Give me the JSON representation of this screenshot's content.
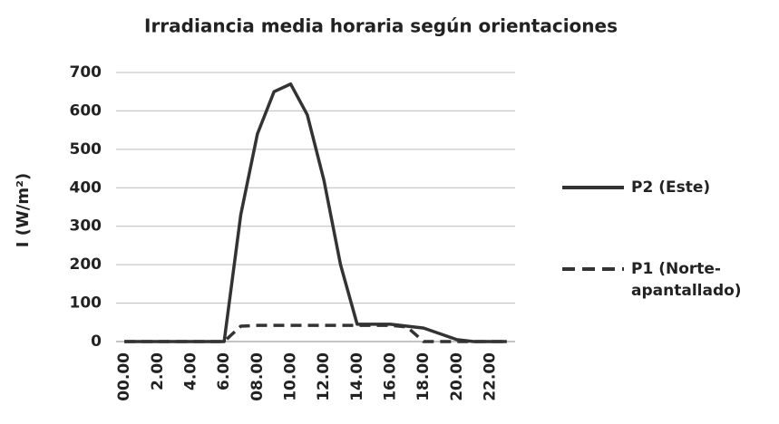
{
  "chart_data": {
    "type": "line",
    "title": "Irradiancia media horaria según orientaciones",
    "y_label": "I (W/m²)",
    "categories": [
      "00.00",
      null,
      "2.00",
      null,
      "4.00",
      null,
      "6.00",
      null,
      "08.00",
      null,
      "10.00",
      null,
      "12.00",
      null,
      "14.00",
      null,
      "16.00",
      null,
      "18.00",
      null,
      "20.00",
      null,
      "22.00",
      null
    ],
    "series": [
      {
        "name": "P2 (Este)",
        "color": "#333333",
        "style": "solid",
        "values": [
          0,
          0,
          0,
          0,
          0,
          0,
          0,
          330,
          540,
          650,
          670,
          590,
          420,
          200,
          45,
          45,
          45,
          40,
          35,
          20,
          5,
          0,
          0,
          0
        ]
      },
      {
        "name": "P1 (Norte-apantallado)",
        "color": "#333333",
        "style": "dashed",
        "values": [
          0,
          0,
          0,
          0,
          0,
          0,
          0,
          40,
          42,
          42,
          42,
          42,
          42,
          42,
          42,
          42,
          42,
          38,
          0,
          0,
          0,
          0,
          0,
          0
        ]
      }
    ],
    "ylim": [
      0,
      700
    ],
    "yticks": [
      0,
      100,
      200,
      300,
      400,
      500,
      600,
      700
    ],
    "grid": true,
    "legend": "right"
  }
}
